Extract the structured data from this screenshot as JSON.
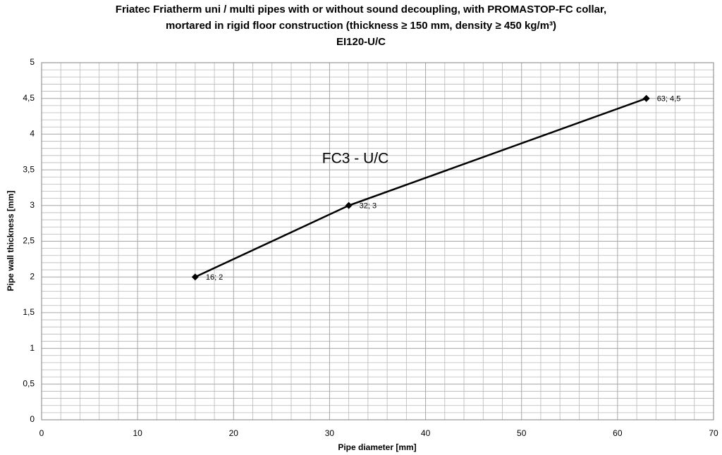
{
  "chart_data": {
    "type": "line",
    "title": [
      "Friatec Friatherm uni / multi pipes with or without sound decoupling, with PROMASTOP-FC collar,",
      "mortared in rigid floor construction (thickness ≥ 150 mm, density ≥ 450 kg/m³)",
      "EI120-U/C"
    ],
    "annotation": "FC3 - U/C",
    "x_label": "Pipe diameter [mm]",
    "y_label": "Pipe wall thickness [mm]",
    "x": [
      16,
      32,
      63
    ],
    "series": [
      {
        "color": "#000000",
        "values": [
          2,
          3,
          4.5
        ],
        "value_labels": [
          "16; 2",
          "32; 3",
          "63; 4,5"
        ]
      }
    ],
    "xlim": [
      0,
      70
    ],
    "xticks": [
      0,
      10,
      20,
      30,
      40,
      50,
      60,
      70
    ],
    "ylim": [
      0,
      5
    ],
    "yticks": [
      0,
      {
        "value": 0.5,
        "label": "0,5"
      },
      1,
      {
        "value": 1.5,
        "label": "1,5"
      },
      2,
      {
        "value": 2.5,
        "label": "2,5"
      },
      3,
      {
        "value": 3.5,
        "label": "3,5"
      },
      4,
      {
        "value": 4.5,
        "label": "4,5"
      },
      5
    ],
    "grid": true,
    "grid_subdivisions": 5
  }
}
